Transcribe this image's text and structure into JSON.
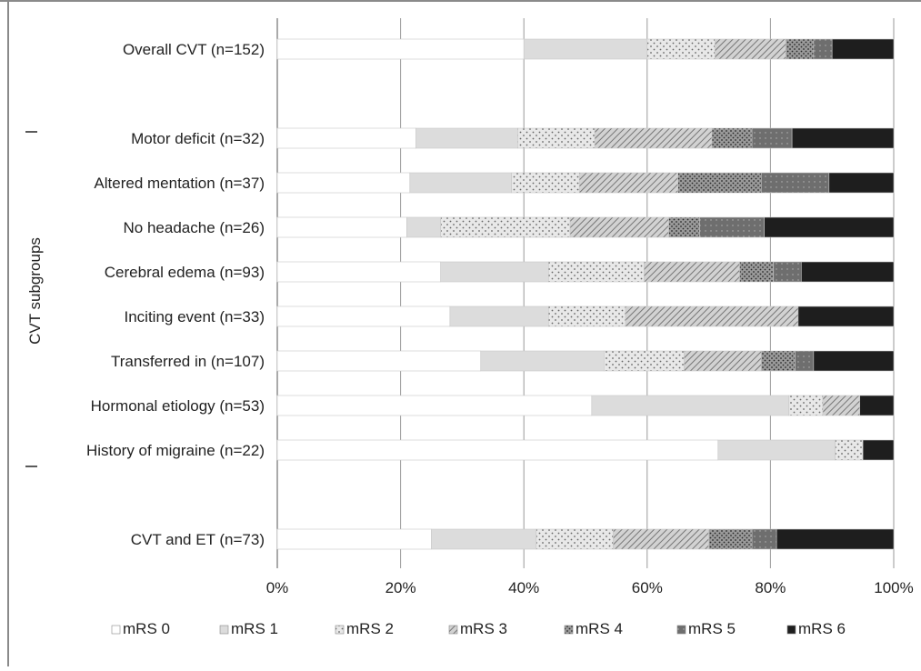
{
  "chart_data": {
    "type": "bar",
    "orientation": "horizontal",
    "stacked": true,
    "percent_scale": true,
    "ylabel": "CVT subgroups",
    "xlim": [
      0,
      100
    ],
    "x_ticks": [
      "0%",
      "20%",
      "40%",
      "60%",
      "80%",
      "100%"
    ],
    "grid": "vertical",
    "legend_position": "bottom",
    "categories": [
      "Overall CVT (n=152)",
      "Motor deficit (n=32)",
      "Altered mentation (n=37)",
      "No headache (n=26)",
      "Cerebral edema (n=93)",
      "Inciting event (n=33)",
      "Transferred in (n=107)",
      "Hormonal etiology (n=53)",
      "History of migraine (n=22)",
      "CVT and ET (n=73)"
    ],
    "series": [
      {
        "name": "mRS 0",
        "color": "#ffffff",
        "pattern": "solid",
        "values": [
          40,
          22.5,
          21.5,
          21,
          26.5,
          28,
          33,
          51,
          71.5,
          25
        ]
      },
      {
        "name": "mRS 1",
        "color": "#dcdcdc",
        "pattern": "solid",
        "values": [
          20,
          16.5,
          16.5,
          5.5,
          17.5,
          16,
          20,
          32,
          19,
          17
        ]
      },
      {
        "name": "mRS 2",
        "color": "#e6e6e6",
        "pattern": "dots",
        "values": [
          11,
          12.5,
          11,
          21,
          15.5,
          12.5,
          13,
          5.5,
          4.5,
          12.5
        ]
      },
      {
        "name": "mRS 3",
        "color": "#c8c8c8",
        "pattern": "diagonal",
        "values": [
          11.5,
          19,
          16,
          16,
          15.5,
          28,
          12.5,
          6,
          0,
          15.5
        ]
      },
      {
        "name": "mRS 4",
        "color": "#9e9e9e",
        "pattern": "dots",
        "values": [
          4.5,
          6.5,
          13.5,
          5,
          5.5,
          0,
          5.5,
          0,
          0,
          7
        ]
      },
      {
        "name": "mRS 5",
        "color": "#6e6e6e",
        "pattern": "dots",
        "values": [
          3,
          6.5,
          11,
          10.5,
          4.5,
          0,
          3,
          0,
          0,
          4
        ]
      },
      {
        "name": "mRS 6",
        "color": "#1e1e1e",
        "pattern": "solid",
        "values": [
          10,
          16.5,
          10.5,
          21,
          15,
          15.5,
          13,
          5.5,
          5,
          19
        ]
      }
    ]
  }
}
